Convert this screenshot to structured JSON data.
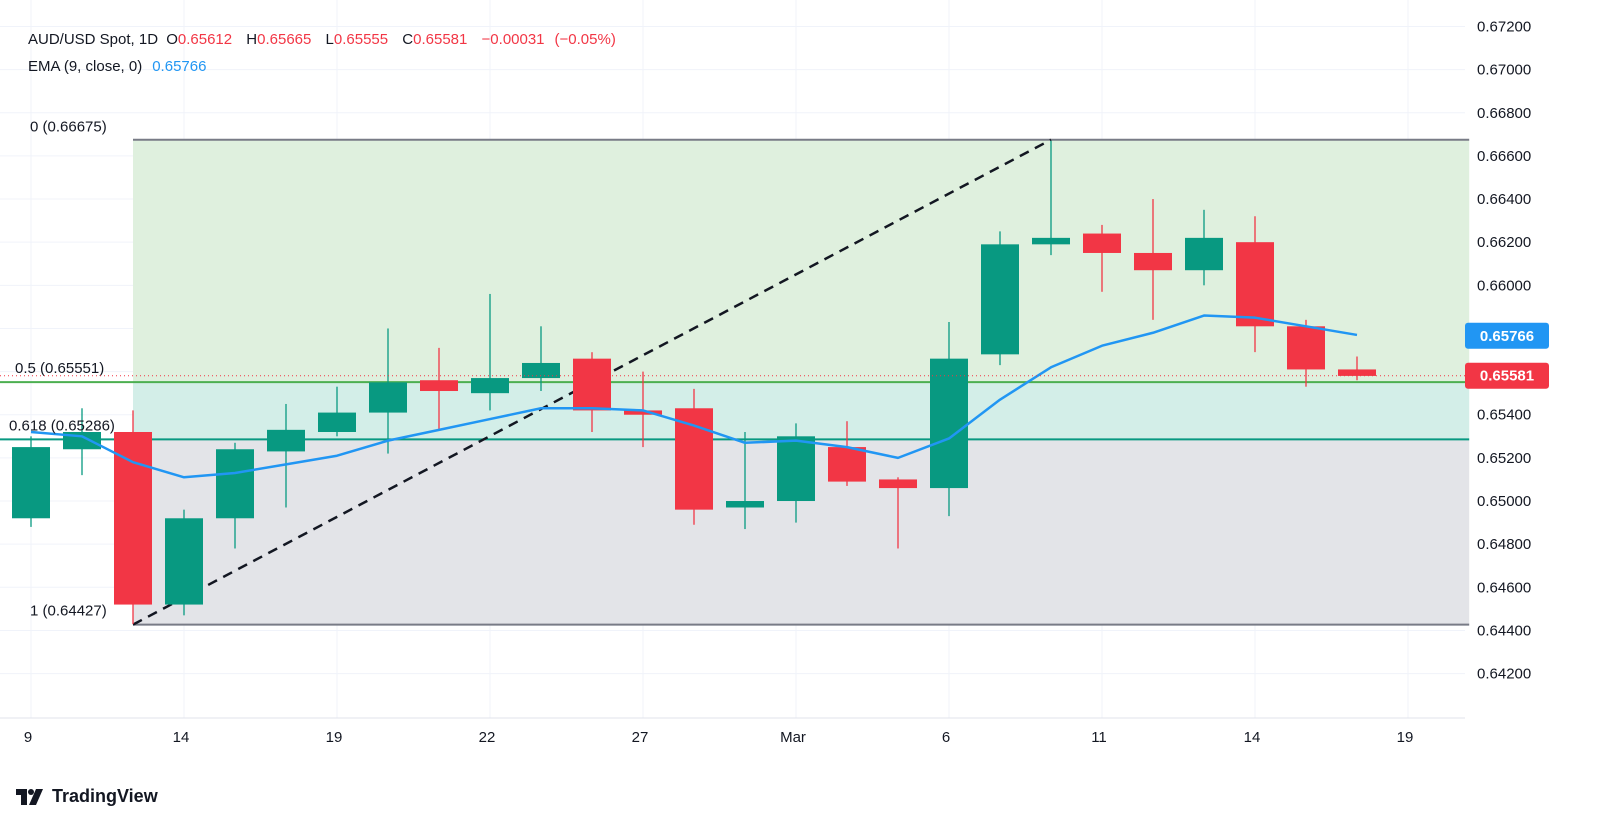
{
  "header": {
    "symbol": "AUD/USD Spot, 1D",
    "open_key": "O",
    "open": "0.65612",
    "high_key": "H",
    "high": "0.65665",
    "low_key": "L",
    "low": "0.65555",
    "close_key": "C",
    "close": "0.65581",
    "change": "−0.00031",
    "change_pct": "(−0.05%)",
    "ema_label": "EMA (9, close, 0)",
    "ema_value": "0.65766"
  },
  "branding": {
    "name": "TradingView"
  },
  "colors": {
    "up": "#089981",
    "down": "#f23645",
    "ema": "#2196f3",
    "fib_top_fill": "#dff0de",
    "fib_mid_fill": "#d3eee8",
    "fib_bottom_fill": "#e3e4e8"
  },
  "chart_data": {
    "type": "candlestick",
    "title": "AUD/USD Spot, 1D",
    "ylim": [
      0.6411,
      0.6723
    ],
    "y_ticks": [
      "0.67200",
      "0.67000",
      "0.66800",
      "0.66600",
      "0.66400",
      "0.66200",
      "0.66000",
      "0.65800",
      "0.65600",
      "0.65400",
      "0.65200",
      "0.65000",
      "0.64800",
      "0.64600",
      "0.64400",
      "0.64200"
    ],
    "x_ticks": [
      {
        "index": 0,
        "label": "9"
      },
      {
        "index": 3,
        "label": "14"
      },
      {
        "index": 6,
        "label": "19"
      },
      {
        "index": 9,
        "label": "22"
      },
      {
        "index": 12,
        "label": "27"
      },
      {
        "index": 15,
        "label": "Mar"
      },
      {
        "index": 18,
        "label": "6"
      },
      {
        "index": 21,
        "label": "11"
      },
      {
        "index": 24,
        "label": "14"
      },
      {
        "index": 27,
        "label": "19"
      }
    ],
    "candles": [
      {
        "o": 0.6492,
        "h": 0.653,
        "l": 0.6488,
        "c": 0.6525
      },
      {
        "o": 0.6524,
        "h": 0.6543,
        "l": 0.6512,
        "c": 0.6532
      },
      {
        "o": 0.6532,
        "h": 0.6542,
        "l": 0.6443,
        "c": 0.6452
      },
      {
        "o": 0.6452,
        "h": 0.6496,
        "l": 0.6447,
        "c": 0.6492
      },
      {
        "o": 0.6492,
        "h": 0.6527,
        "l": 0.6478,
        "c": 0.6524
      },
      {
        "o": 0.6523,
        "h": 0.6545,
        "l": 0.6497,
        "c": 0.6533
      },
      {
        "o": 0.6532,
        "h": 0.6553,
        "l": 0.653,
        "c": 0.6541
      },
      {
        "o": 0.6541,
        "h": 0.658,
        "l": 0.6522,
        "c": 0.6555
      },
      {
        "o": 0.6556,
        "h": 0.6571,
        "l": 0.6533,
        "c": 0.6551
      },
      {
        "o": 0.655,
        "h": 0.6596,
        "l": 0.6542,
        "c": 0.6557
      },
      {
        "o": 0.6557,
        "h": 0.6581,
        "l": 0.6551,
        "c": 0.6564
      },
      {
        "o": 0.6566,
        "h": 0.6569,
        "l": 0.6532,
        "c": 0.6542
      },
      {
        "o": 0.6542,
        "h": 0.656,
        "l": 0.6525,
        "c": 0.654
      },
      {
        "o": 0.6543,
        "h": 0.6552,
        "l": 0.6489,
        "c": 0.6496
      },
      {
        "o": 0.6497,
        "h": 0.6532,
        "l": 0.6487,
        "c": 0.65
      },
      {
        "o": 0.65,
        "h": 0.6536,
        "l": 0.649,
        "c": 0.653
      },
      {
        "o": 0.6525,
        "h": 0.6537,
        "l": 0.6507,
        "c": 0.6509
      },
      {
        "o": 0.651,
        "h": 0.6511,
        "l": 0.6478,
        "c": 0.6506
      },
      {
        "o": 0.6506,
        "h": 0.6583,
        "l": 0.6493,
        "c": 0.6566
      },
      {
        "o": 0.6568,
        "h": 0.6625,
        "l": 0.6563,
        "c": 0.6619
      },
      {
        "o": 0.6619,
        "h": 0.6667,
        "l": 0.6614,
        "c": 0.6622
      },
      {
        "o": 0.6624,
        "h": 0.6628,
        "l": 0.6597,
        "c": 0.6615
      },
      {
        "o": 0.6615,
        "h": 0.664,
        "l": 0.6584,
        "c": 0.6607
      },
      {
        "o": 0.6607,
        "h": 0.6635,
        "l": 0.66,
        "c": 0.6622
      },
      {
        "o": 0.662,
        "h": 0.6632,
        "l": 0.6569,
        "c": 0.6581
      },
      {
        "o": 0.6581,
        "h": 0.6584,
        "l": 0.6553,
        "c": 0.6561
      },
      {
        "o": 0.6561,
        "h": 0.6567,
        "l": 0.6556,
        "c": 0.6558
      }
    ],
    "ema": {
      "name": "EMA (9, close, 0)",
      "points": [
        {
          "i": 0,
          "v": 0.6532
        },
        {
          "i": 1,
          "v": 0.653
        },
        {
          "i": 2,
          "v": 0.6518
        },
        {
          "i": 3,
          "v": 0.6511
        },
        {
          "i": 4,
          "v": 0.6513
        },
        {
          "i": 5,
          "v": 0.6517
        },
        {
          "i": 6,
          "v": 0.6521
        },
        {
          "i": 7,
          "v": 0.6528
        },
        {
          "i": 8,
          "v": 0.6533
        },
        {
          "i": 9,
          "v": 0.6538
        },
        {
          "i": 10,
          "v": 0.6543
        },
        {
          "i": 11,
          "v": 0.6543
        },
        {
          "i": 12,
          "v": 0.6542
        },
        {
          "i": 13,
          "v": 0.6535
        },
        {
          "i": 14,
          "v": 0.6527
        },
        {
          "i": 15,
          "v": 0.6528
        },
        {
          "i": 16,
          "v": 0.6525
        },
        {
          "i": 17,
          "v": 0.652
        },
        {
          "i": 18,
          "v": 0.6529
        },
        {
          "i": 19,
          "v": 0.6547
        },
        {
          "i": 20,
          "v": 0.6562
        },
        {
          "i": 21,
          "v": 0.6572
        },
        {
          "i": 22,
          "v": 0.6578
        },
        {
          "i": 23,
          "v": 0.6586
        },
        {
          "i": 24,
          "v": 0.6585
        },
        {
          "i": 25,
          "v": 0.6581
        },
        {
          "i": 26,
          "v": 0.6577
        }
      ]
    },
    "fibonacci": {
      "start_index": 2,
      "end_index": 20,
      "extend_to_index": 28.2,
      "low": 0.64427,
      "high": 0.66675,
      "levels": [
        {
          "label": "0 (0.66675)",
          "value": 0.66675,
          "color": "#787b86"
        },
        {
          "label": "0.5 (0.65551)",
          "value": 0.65551,
          "color": "#4caf50"
        },
        {
          "label": "0.618 (0.65286)",
          "value": 0.65286,
          "color": "#089981"
        },
        {
          "label": "1 (0.64427)",
          "value": 0.64427,
          "color": "#787b86"
        }
      ]
    },
    "price_tags": [
      {
        "value": 0.65766,
        "label": "0.65766",
        "color": "#2196f3"
      },
      {
        "value": 0.65581,
        "label": "0.65581",
        "color": "#f23645"
      }
    ]
  }
}
